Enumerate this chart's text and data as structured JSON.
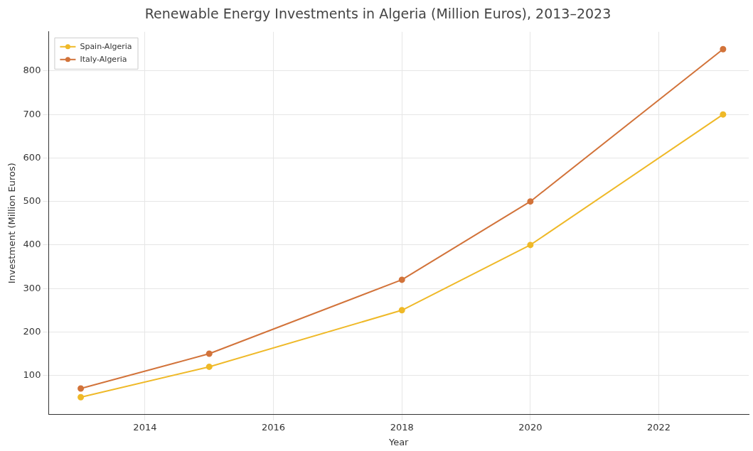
{
  "chart_data": {
    "type": "line",
    "title": "Renewable Energy Investments in Algeria (Million Euros), 2013–2023",
    "xlabel": "Year",
    "ylabel": "Investment (Million Euros)",
    "x": [
      2013,
      2015,
      2018,
      2020,
      2023
    ],
    "series": [
      {
        "name": "Spain-Algeria",
        "color": "#efb928",
        "values": [
          50,
          120,
          250,
          400,
          700
        ]
      },
      {
        "name": "Italy-Algeria",
        "color": "#d2733a",
        "values": [
          70,
          150,
          320,
          500,
          850
        ]
      }
    ],
    "xlim": [
      2012.5,
      2023.4
    ],
    "xticks": [
      2014,
      2016,
      2018,
      2020,
      2022
    ],
    "ylim": [
      10,
      890
    ],
    "yticks": [
      100,
      200,
      300,
      400,
      500,
      600,
      700,
      800
    ],
    "grid": true,
    "legend": "top left",
    "marker": "circle",
    "line_style": "solid"
  }
}
